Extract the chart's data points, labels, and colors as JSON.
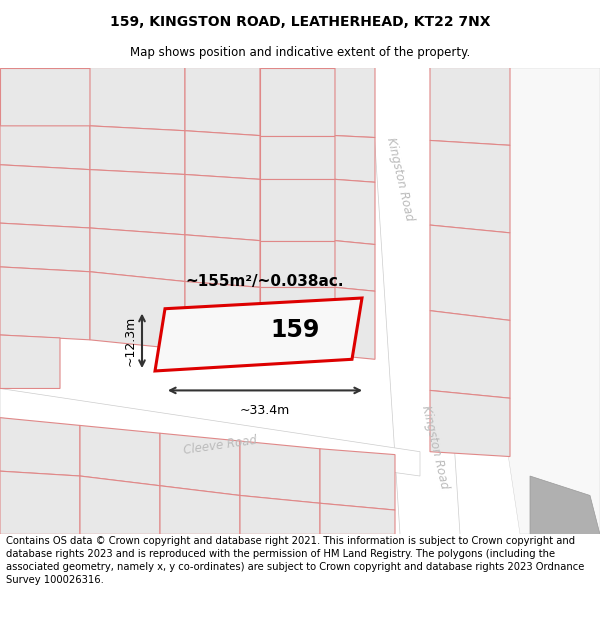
{
  "title": "159, KINGSTON ROAD, LEATHERHEAD, KT22 7NX",
  "subtitle": "Map shows position and indicative extent of the property.",
  "footer": "Contains OS data © Crown copyright and database right 2021. This information is subject to Crown copyright and database rights 2023 and is reproduced with the permission of HM Land Registry. The polygons (including the associated geometry, namely x, y co-ordinates) are subject to Crown copyright and database rights 2023 Ordnance Survey 100026316.",
  "background_color": "#ffffff",
  "title_color": "#000000",
  "area_text": "~155m²/~0.038ac.",
  "label_159": "159",
  "dim_width": "~33.4m",
  "dim_height": "~12.3m",
  "road1_label": "Kingston Road",
  "road2_label": "Cleeve Road",
  "map_facecolor": "#f5f5f5",
  "block_face": "#e8e8e8",
  "block_edge": "#e08888",
  "road_face": "#ffffff",
  "gray_shape_face": "#b0b0b0",
  "road_label_color": "#bbbbbb",
  "prop_edge": "#dd0000",
  "prop_face": "#f8f8f8",
  "title_fontsize": 10,
  "subtitle_fontsize": 8.5,
  "footer_fontsize": 7.2
}
